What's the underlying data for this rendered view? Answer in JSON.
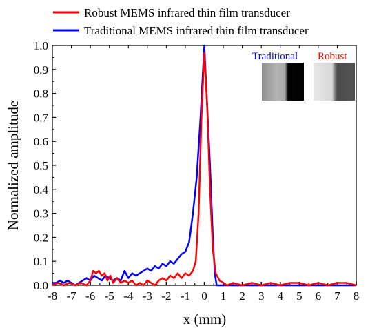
{
  "chart_data": {
    "type": "line",
    "title": "",
    "xlabel": "x (mm)",
    "ylabel": "Normalized amplitude",
    "xlim": [
      -8,
      8
    ],
    "ylim": [
      0,
      1.0
    ],
    "x_ticks": [
      "-8",
      "-7",
      "-6",
      "-5",
      "-4",
      "-3",
      "-2",
      "-1",
      "0",
      "1",
      "2",
      "3",
      "4",
      "5",
      "6",
      "7",
      "8"
    ],
    "y_ticks": [
      "0.0",
      "0.1",
      "0.2",
      "0.3",
      "0.4",
      "0.5",
      "0.6",
      "0.7",
      "0.8",
      "0.9",
      "1.0"
    ],
    "legend_position": "top",
    "grid": false,
    "series": [
      {
        "name": "Robust MEMS infrared thin film transducer",
        "color": "#ff0000",
        "points": [
          [
            -8.0,
            0.0
          ],
          [
            -7.7,
            0.01
          ],
          [
            -7.4,
            0.0
          ],
          [
            -7.1,
            0.01
          ],
          [
            -6.8,
            0.0
          ],
          [
            -6.5,
            0.01
          ],
          [
            -6.2,
            0.0
          ],
          [
            -6.0,
            0.02
          ],
          [
            -5.85,
            0.06
          ],
          [
            -5.7,
            0.05
          ],
          [
            -5.55,
            0.06
          ],
          [
            -5.4,
            0.04
          ],
          [
            -5.25,
            0.05
          ],
          [
            -5.1,
            0.02
          ],
          [
            -4.95,
            0.04
          ],
          [
            -4.8,
            0.01
          ],
          [
            -4.6,
            0.03
          ],
          [
            -4.4,
            0.01
          ],
          [
            -4.2,
            0.02
          ],
          [
            -4.0,
            0.01
          ],
          [
            -3.8,
            0.02
          ],
          [
            -3.6,
            0.0
          ],
          [
            -3.4,
            0.01
          ],
          [
            -3.2,
            0.0
          ],
          [
            -3.0,
            0.02
          ],
          [
            -2.8,
            0.01
          ],
          [
            -2.6,
            0.0
          ],
          [
            -2.4,
            0.02
          ],
          [
            -2.2,
            0.03
          ],
          [
            -2.0,
            0.02
          ],
          [
            -1.8,
            0.04
          ],
          [
            -1.6,
            0.03
          ],
          [
            -1.4,
            0.05
          ],
          [
            -1.2,
            0.03
          ],
          [
            -1.0,
            0.05
          ],
          [
            -0.8,
            0.04
          ],
          [
            -0.6,
            0.06
          ],
          [
            -0.45,
            0.1
          ],
          [
            -0.3,
            0.3
          ],
          [
            -0.15,
            0.7
          ],
          [
            0.0,
            0.97
          ],
          [
            0.15,
            0.75
          ],
          [
            0.3,
            0.4
          ],
          [
            0.45,
            0.15
          ],
          [
            0.6,
            0.05
          ],
          [
            0.8,
            0.02
          ],
          [
            1.0,
            0.01
          ],
          [
            1.2,
            0.0
          ],
          [
            1.5,
            0.01
          ],
          [
            2.0,
            0.0
          ],
          [
            2.5,
            0.01
          ],
          [
            3.0,
            0.0
          ],
          [
            3.5,
            0.01
          ],
          [
            4.0,
            0.0
          ],
          [
            4.5,
            0.01
          ],
          [
            5.0,
            0.01
          ],
          [
            5.5,
            0.0
          ],
          [
            6.0,
            0.01
          ],
          [
            6.5,
            0.0
          ],
          [
            7.0,
            0.01
          ],
          [
            7.5,
            0.01
          ],
          [
            8.0,
            0.0
          ]
        ]
      },
      {
        "name": "Traditional MEMS infrared thin film transducer",
        "color": "#0000ff",
        "points": [
          [
            -8.0,
            0.01
          ],
          [
            -7.8,
            0.01
          ],
          [
            -7.6,
            0.02
          ],
          [
            -7.4,
            0.01
          ],
          [
            -7.2,
            0.02
          ],
          [
            -7.0,
            0.01
          ],
          [
            -6.8,
            0.0
          ],
          [
            -6.6,
            0.01
          ],
          [
            -6.4,
            0.02
          ],
          [
            -6.2,
            0.03
          ],
          [
            -6.0,
            0.02
          ],
          [
            -5.8,
            0.04
          ],
          [
            -5.6,
            0.03
          ],
          [
            -5.4,
            0.02
          ],
          [
            -5.2,
            0.04
          ],
          [
            -5.0,
            0.03
          ],
          [
            -4.8,
            0.02
          ],
          [
            -4.6,
            0.03
          ],
          [
            -4.4,
            0.02
          ],
          [
            -4.2,
            0.06
          ],
          [
            -4.0,
            0.03
          ],
          [
            -3.8,
            0.05
          ],
          [
            -3.6,
            0.04
          ],
          [
            -3.4,
            0.05
          ],
          [
            -3.2,
            0.06
          ],
          [
            -3.0,
            0.07
          ],
          [
            -2.8,
            0.06
          ],
          [
            -2.6,
            0.08
          ],
          [
            -2.4,
            0.07
          ],
          [
            -2.2,
            0.09
          ],
          [
            -2.0,
            0.08
          ],
          [
            -1.8,
            0.1
          ],
          [
            -1.6,
            0.09
          ],
          [
            -1.4,
            0.11
          ],
          [
            -1.2,
            0.13
          ],
          [
            -1.0,
            0.14
          ],
          [
            -0.8,
            0.18
          ],
          [
            -0.6,
            0.3
          ],
          [
            -0.4,
            0.45
          ],
          [
            -0.2,
            0.7
          ],
          [
            0.0,
            1.0
          ],
          [
            0.15,
            0.75
          ],
          [
            0.3,
            0.5
          ],
          [
            0.45,
            0.2
          ],
          [
            0.55,
            0.05
          ],
          [
            0.65,
            0.0
          ],
          [
            1.0,
            0.0
          ],
          [
            2.0,
            0.0
          ],
          [
            3.0,
            0.0
          ],
          [
            4.0,
            0.0
          ],
          [
            5.0,
            0.0
          ],
          [
            6.0,
            0.0
          ],
          [
            7.0,
            0.0
          ],
          [
            8.0,
            0.0
          ]
        ]
      }
    ],
    "inset": {
      "labels": [
        {
          "text": "Traditional",
          "color": "#0000ff"
        },
        {
          "text": "Robust",
          "color": "#ff0000"
        }
      ]
    }
  }
}
